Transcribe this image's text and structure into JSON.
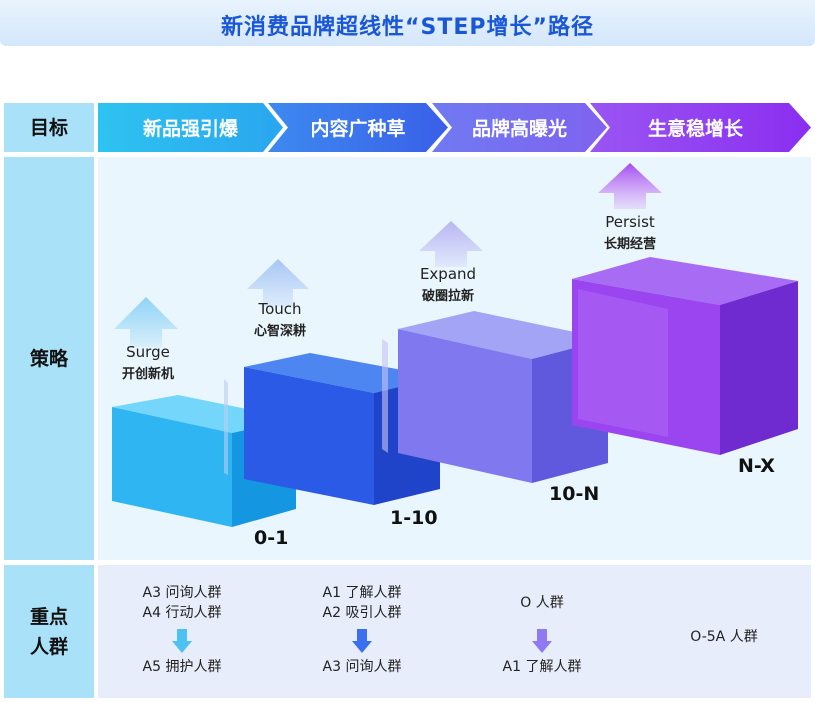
{
  "title": "新消费品牌超线性“STEP增长”路径",
  "row_labels": {
    "goal": "目标",
    "strategy": "策略",
    "audience_line1": "重点",
    "audience_line2": "人群"
  },
  "stages": [
    {
      "label": "新品强引爆",
      "color": "#2fb4ee"
    },
    {
      "label": "内容广种草",
      "color": "#3a78ee"
    },
    {
      "label": "品牌高曝光",
      "color": "#7b63f0"
    },
    {
      "label": "生意稳增长",
      "color": "#8a3df0"
    }
  ],
  "steps": [
    {
      "en": "Surge",
      "cn": "开创新机",
      "code": "0-1",
      "color": "#29aef0",
      "arrow": "#8fd3f6"
    },
    {
      "en": "Touch",
      "cn": "心智深耕",
      "code": "1-10",
      "color": "#2a62ea",
      "arrow": "#a8c6f4"
    },
    {
      "en": "Expand",
      "cn": "破圈拉新",
      "code": "10-N",
      "color": "#7a6ff2",
      "arrow": "#b9b6f3"
    },
    {
      "en": "Persist",
      "cn": "长期经营",
      "code": "N-X",
      "color": "#8a3ef0",
      "arrow": "#b169f2"
    }
  ],
  "audiences": [
    {
      "top1": "A3 问询人群",
      "top2": "A4 行动人群",
      "bottom": "A5 拥护人群",
      "arrow_color": "#4ec1f3"
    },
    {
      "top1": "A1 了解人群",
      "top2": "A2 吸引人群",
      "bottom": "A3 问询人群",
      "arrow_color": "#3a6ff0"
    },
    {
      "top1": "O 人群",
      "top2": "",
      "bottom": "A1 了解人群",
      "arrow_color": "#8f7af2"
    },
    {
      "single": "O-5A 人群"
    }
  ]
}
